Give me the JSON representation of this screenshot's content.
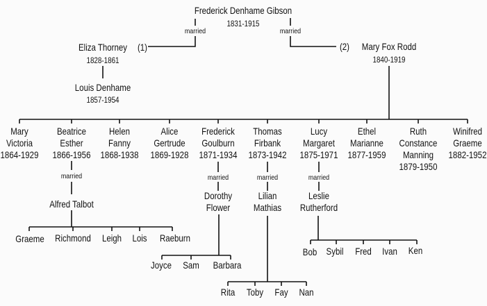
{
  "patriarch": {
    "name": "Frederick Denhame Gibson",
    "dates": "1831-1915"
  },
  "married_label": "married",
  "wife1": {
    "name": "Eliza Thorney",
    "order": "(1)",
    "dates": "1828-1861"
  },
  "wife1_child": {
    "name": "Louis Denhame",
    "dates": "1857-1954"
  },
  "wife2": {
    "name": "Mary Fox Rodd",
    "order": "(2)",
    "dates": "1840-1919"
  },
  "children": [
    {
      "name_lines": [
        "Mary",
        "Victoria"
      ],
      "dates": "1864-1929"
    },
    {
      "name_lines": [
        "Beatrice",
        "Esther"
      ],
      "dates": "1866-1956"
    },
    {
      "name_lines": [
        "Helen",
        "Fanny"
      ],
      "dates": "1868-1938"
    },
    {
      "name_lines": [
        "Alice",
        "Gertrude"
      ],
      "dates": "1869-1928"
    },
    {
      "name_lines": [
        "Frederick",
        "Goulburn"
      ],
      "dates": "1871-1934"
    },
    {
      "name_lines": [
        "Thomas",
        "Firbank"
      ],
      "dates": "1873-1942"
    },
    {
      "name_lines": [
        "Lucy",
        "Margaret"
      ],
      "dates": "1875-1971"
    },
    {
      "name_lines": [
        "Ethel",
        "Marianne"
      ],
      "dates": "1877-1959"
    },
    {
      "name_lines": [
        "Ruth",
        "Constance",
        "Manning"
      ],
      "dates": "1879-1950"
    },
    {
      "name_lines": [
        "Winifred",
        "Graeme"
      ],
      "dates": "1882-1952"
    }
  ],
  "families": [
    {
      "spouse_lines": [
        "Alfred Talbot"
      ],
      "children": [
        "Graeme",
        "Richmond",
        "Leigh",
        "Lois",
        "Raeburn"
      ]
    },
    {
      "spouse_lines": [
        "Dorothy",
        "Flower"
      ],
      "children": [
        "Joyce",
        "Sam",
        "Barbara"
      ]
    },
    {
      "spouse_lines": [
        "Lilian",
        "Mathias"
      ],
      "children": [
        "Rita",
        "Toby",
        "Fay",
        "Nan"
      ]
    },
    {
      "spouse_lines": [
        "Leslie",
        "Rutherford"
      ],
      "children": [
        "Bob",
        "Sybil",
        "Fred",
        "Ivan",
        "Ken"
      ]
    }
  ]
}
